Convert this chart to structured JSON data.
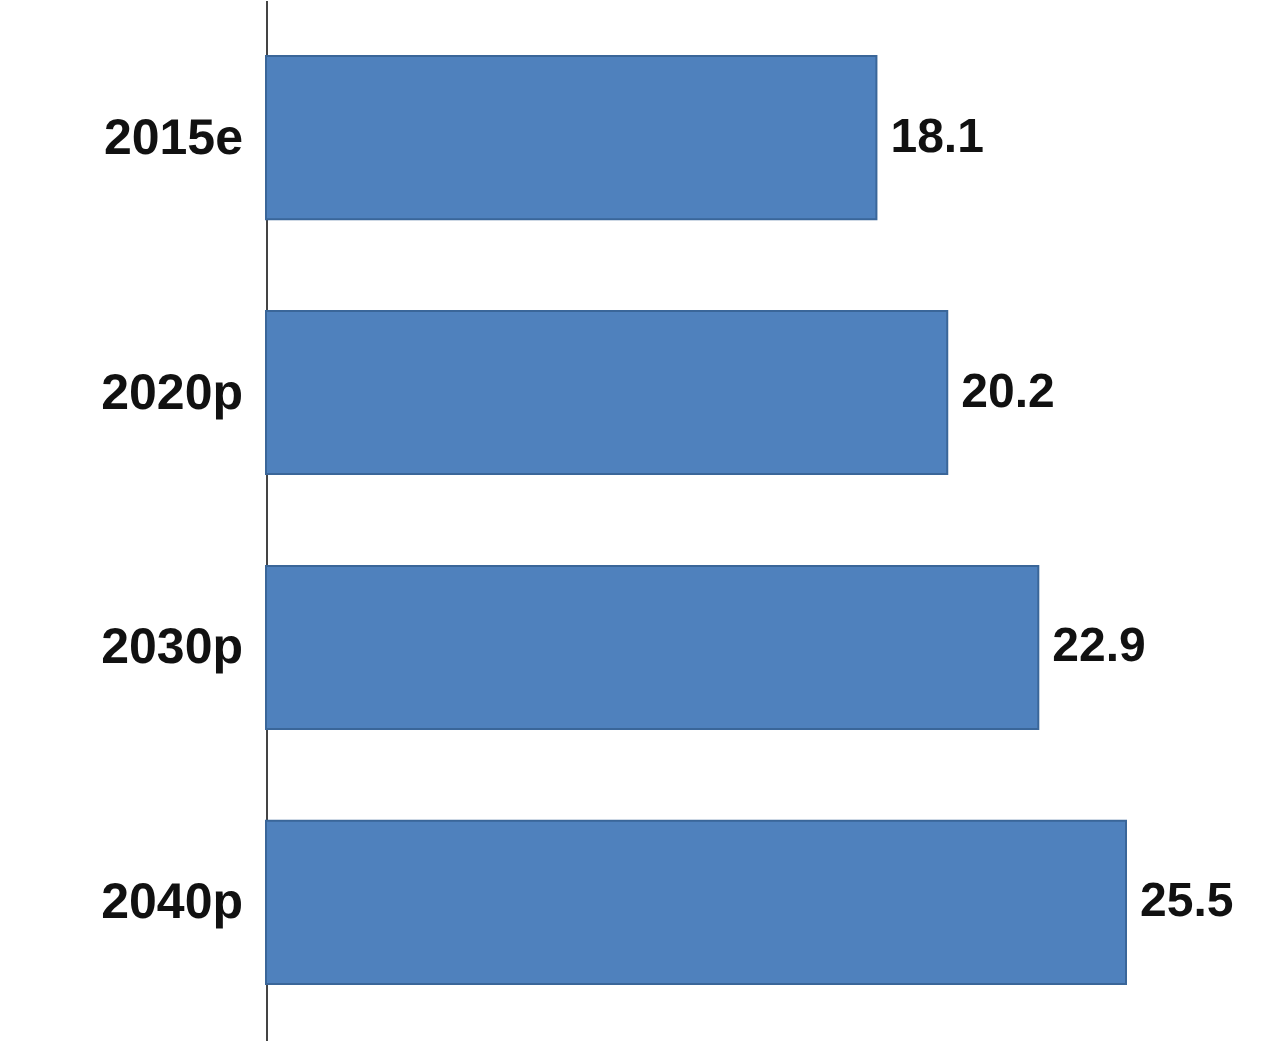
{
  "chart_data": {
    "type": "bar",
    "orientation": "horizontal",
    "categories": [
      "2015e",
      "2020p",
      "2030p",
      "2040p"
    ],
    "values": [
      18.1,
      20.2,
      22.9,
      25.5
    ],
    "color": "#4f81bd",
    "data_labels": true
  }
}
